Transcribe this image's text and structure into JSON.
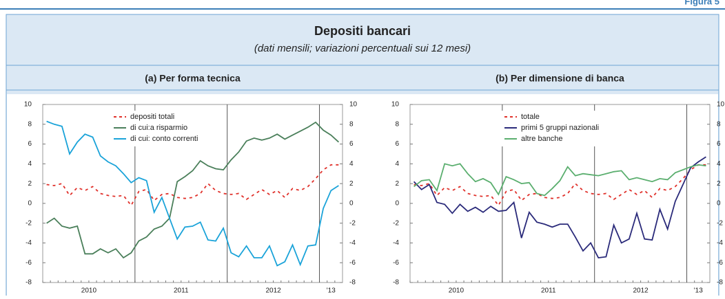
{
  "header": {
    "figure": "Figura 5",
    "title": "Depositi bancari",
    "subtitle": "(dati mensili; variazioni percentuali sui 12 mesi)"
  },
  "chart_data": [
    {
      "type": "line",
      "title": "(a) Per forma tecnica",
      "categories": [
        null,
        null,
        null,
        null,
        null,
        null,
        null,
        null,
        null,
        null,
        null,
        null,
        null,
        null,
        null,
        null,
        null,
        null,
        null,
        null,
        null,
        null,
        null,
        null,
        null,
        null,
        null,
        null,
        null,
        null,
        null,
        null,
        null,
        null,
        null,
        null,
        null,
        null,
        null
      ],
      "year_labels": [
        "2010",
        "2011",
        "2012",
        "'13"
      ],
      "ylim": [
        -8,
        10
      ],
      "yticks": [
        -8,
        -6,
        -4,
        -2,
        0,
        2,
        4,
        6,
        8,
        10
      ],
      "y2lim": [
        -8,
        10
      ],
      "y2ticks": [
        -8,
        -6,
        -4,
        -2,
        0,
        2,
        4,
        6,
        8,
        10
      ],
      "series": [
        {
          "name": "depositi totali",
          "color": "#e0302a",
          "dash": true,
          "values": [
            1.9,
            1.8,
            2.0,
            0.8,
            1.6,
            1.3,
            1.7,
            1.0,
            0.8,
            0.7,
            0.8,
            -0.2,
            1.2,
            1.4,
            0.3,
            0.9,
            1.0,
            0.6,
            0.5,
            0.6,
            1.0,
            2.0,
            1.3,
            1.0,
            0.9,
            1.0,
            0.4,
            0.9,
            1.4,
            0.9,
            1.3,
            0.6,
            1.5,
            1.3,
            1.7,
            2.5,
            3.4,
            3.9,
            3.9
          ]
        },
        {
          "name": "di cui:a risparmio",
          "color": "#4a7f5a",
          "dash": false,
          "values": [
            -2.0,
            -1.5,
            -2.3,
            -2.5,
            -2.3,
            -5.1,
            -5.1,
            -4.6,
            -5.0,
            -4.6,
            -5.5,
            -5.0,
            -3.8,
            -3.4,
            -2.6,
            -2.3,
            -1.5,
            2.2,
            2.7,
            3.3,
            4.3,
            3.8,
            3.5,
            3.4,
            4.4,
            5.2,
            6.3,
            6.6,
            6.4,
            6.6,
            7.0,
            6.5,
            6.9,
            7.3,
            7.7,
            8.2,
            7.4,
            6.9,
            6.2
          ]
        },
        {
          "name": "di cui: conto correnti",
          "color": "#1aa3d9",
          "dash": false,
          "values": [
            8.3,
            8.0,
            7.8,
            5.0,
            6.2,
            7.0,
            6.7,
            4.8,
            4.2,
            3.8,
            3.0,
            2.1,
            2.6,
            2.3,
            -0.9,
            0.6,
            -1.5,
            -3.6,
            -2.4,
            -2.3,
            -1.9,
            -3.7,
            -3.8,
            -2.5,
            -5.0,
            -5.4,
            -4.3,
            -5.5,
            -5.5,
            -4.3,
            -6.3,
            -5.9,
            -4.2,
            -6.2,
            -4.3,
            -4.2,
            -0.5,
            1.3,
            1.8
          ]
        }
      ]
    },
    {
      "type": "line",
      "title": "(b) Per dimensione di banca",
      "categories": [
        null,
        null,
        null,
        null,
        null,
        null,
        null,
        null,
        null,
        null,
        null,
        null,
        null,
        null,
        null,
        null,
        null,
        null,
        null,
        null,
        null,
        null,
        null,
        null,
        null,
        null,
        null,
        null,
        null,
        null,
        null,
        null,
        null,
        null,
        null,
        null,
        null,
        null,
        null
      ],
      "year_labels": [
        "2010",
        "2011",
        "2012",
        "'13"
      ],
      "ylim": [
        -8,
        10
      ],
      "yticks": [
        -8,
        -6,
        -4,
        -2,
        0,
        2,
        4,
        6,
        8,
        10
      ],
      "y2lim": [
        -8,
        10
      ],
      "y2ticks": [
        -8,
        -6,
        -4,
        -2,
        0,
        2,
        4,
        6,
        8,
        10
      ],
      "series": [
        {
          "name": "totale",
          "color": "#e0302a",
          "dash": true,
          "values": [
            1.9,
            1.8,
            2.0,
            0.8,
            1.6,
            1.3,
            1.7,
            1.0,
            0.8,
            0.7,
            0.8,
            -0.2,
            1.2,
            1.4,
            0.3,
            0.9,
            1.0,
            0.6,
            0.5,
            0.6,
            1.0,
            2.0,
            1.3,
            1.0,
            0.9,
            1.0,
            0.4,
            0.9,
            1.4,
            0.9,
            1.3,
            0.6,
            1.5,
            1.3,
            1.7,
            2.5,
            3.4,
            3.9,
            3.9
          ]
        },
        {
          "name": "primi 5 gruppi nazionali",
          "color": "#2a2a7a",
          "dash": false,
          "values": [
            2.2,
            1.4,
            1.9,
            0.1,
            -0.1,
            -1.0,
            -0.1,
            -0.8,
            -0.4,
            -0.9,
            -0.3,
            -0.8,
            -0.7,
            0.1,
            -3.5,
            -0.9,
            -1.9,
            -2.1,
            -2.4,
            -2.1,
            -2.1,
            -3.4,
            -4.8,
            -4.0,
            -5.5,
            -5.4,
            -2.2,
            -4.0,
            -3.6,
            -1.0,
            -3.6,
            -3.7,
            -0.6,
            -2.6,
            0.2,
            1.9,
            3.6,
            4.2,
            4.7
          ]
        },
        {
          "name": "altre banche",
          "color": "#5aae6e",
          "dash": false,
          "values": [
            1.7,
            2.3,
            2.4,
            1.3,
            4.0,
            3.8,
            4.0,
            3.0,
            2.2,
            2.5,
            2.1,
            0.9,
            2.7,
            2.4,
            2.0,
            2.1,
            1.0,
            0.8,
            1.5,
            2.3,
            3.7,
            2.8,
            3.0,
            2.9,
            2.8,
            3.0,
            3.2,
            3.3,
            2.4,
            2.6,
            2.4,
            2.2,
            2.5,
            2.4,
            3.1,
            3.4,
            3.7,
            3.9,
            3.8
          ]
        }
      ]
    }
  ]
}
